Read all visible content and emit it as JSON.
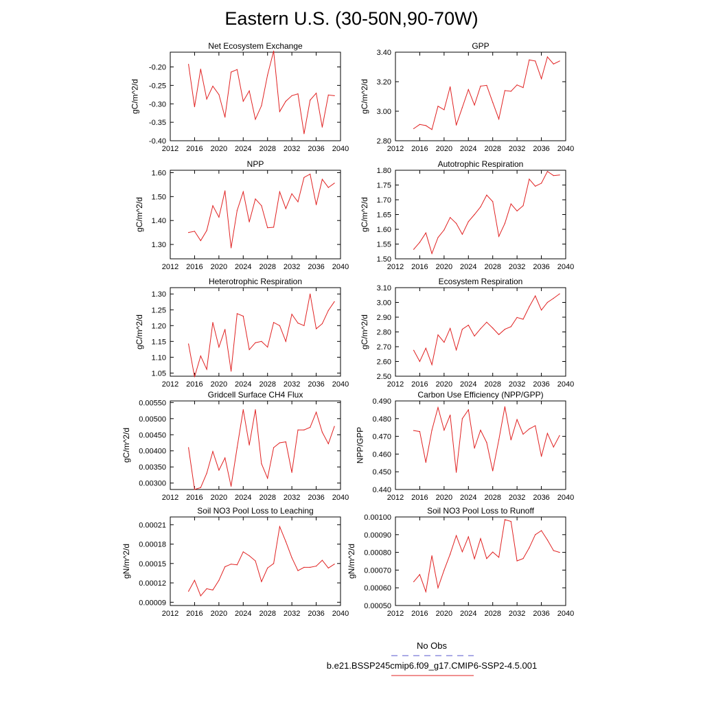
{
  "page_title": "Eastern U.S. (30-50N,90-70W)",
  "legend": {
    "entries": [
      {
        "label": "No Obs",
        "color": "#5555cc",
        "dash": "dashed"
      },
      {
        "label": "b.e21.BSSP245cmip6.f09_g17.CMIP6-SSP2-4.5.001",
        "color": "#e02020",
        "dash": "solid"
      }
    ]
  },
  "chart_data": [
    {
      "type": "line",
      "title": "Net Ecosystem Exchange",
      "ylabel": "gC/m^2/d",
      "xlabel": "",
      "xlim": [
        2012,
        2040
      ],
      "ylim": [
        -0.4,
        -0.16
      ],
      "xticks": [
        2012,
        2016,
        2020,
        2024,
        2028,
        2032,
        2036,
        2040
      ],
      "xtick_labels": [
        "2012",
        "2016",
        "2020",
        "2024",
        "2028",
        "2032",
        "2036",
        "2040"
      ],
      "yticks": [
        -0.4,
        -0.35,
        -0.3,
        -0.25,
        -0.2
      ],
      "ytick_labels": [
        "-0.40",
        "-0.35",
        "-0.30",
        "-0.25",
        "-0.20"
      ],
      "series": [
        {
          "color": "#e02020",
          "x": [
            2015,
            2016,
            2017,
            2018,
            2019,
            2020,
            2021,
            2022,
            2023,
            2024,
            2025,
            2026,
            2027,
            2028,
            2029,
            2030,
            2031,
            2032,
            2033,
            2034,
            2035,
            2036,
            2037,
            2038,
            2039
          ],
          "values": [
            -0.193,
            -0.308,
            -0.206,
            -0.287,
            -0.252,
            -0.275,
            -0.336,
            -0.214,
            -0.207,
            -0.293,
            -0.265,
            -0.342,
            -0.305,
            -0.222,
            -0.157,
            -0.321,
            -0.293,
            -0.278,
            -0.273,
            -0.381,
            -0.29,
            -0.271,
            -0.363,
            -0.276,
            -0.278
          ]
        }
      ]
    },
    {
      "type": "line",
      "title": "GPP",
      "ylabel": "gC/m^2/d",
      "xlabel": "",
      "xlim": [
        2012,
        2040
      ],
      "ylim": [
        2.8,
        3.4
      ],
      "xticks": [
        2012,
        2016,
        2020,
        2024,
        2028,
        2032,
        2036,
        2040
      ],
      "xtick_labels": [
        "2012",
        "2016",
        "2020",
        "2024",
        "2028",
        "2032",
        "2036",
        "2040"
      ],
      "yticks": [
        2.8,
        3.0,
        3.2,
        3.4
      ],
      "ytick_labels": [
        "2.80",
        "3.00",
        "3.20",
        "3.40"
      ],
      "series": [
        {
          "color": "#e02020",
          "x": [
            2015,
            2016,
            2017,
            2018,
            2019,
            2020,
            2021,
            2022,
            2023,
            2024,
            2025,
            2026,
            2027,
            2028,
            2029,
            2030,
            2031,
            2032,
            2033,
            2034,
            2035,
            2036,
            2037,
            2038,
            2039
          ],
          "values": [
            2.882,
            2.91,
            2.903,
            2.876,
            3.034,
            3.01,
            3.165,
            2.906,
            3.025,
            3.147,
            3.042,
            3.17,
            3.175,
            3.06,
            2.947,
            3.14,
            3.135,
            3.178,
            3.16,
            3.348,
            3.34,
            3.22,
            3.368,
            3.32,
            3.34
          ]
        }
      ]
    },
    {
      "type": "line",
      "title": "NPP",
      "ylabel": "gC/m^2/d",
      "xlabel": "",
      "xlim": [
        2012,
        2040
      ],
      "ylim": [
        1.24,
        1.61
      ],
      "xticks": [
        2012,
        2016,
        2020,
        2024,
        2028,
        2032,
        2036,
        2040
      ],
      "xtick_labels": [
        "2012",
        "2016",
        "2020",
        "2024",
        "2028",
        "2032",
        "2036",
        "2040"
      ],
      "yticks": [
        1.3,
        1.4,
        1.5,
        1.6
      ],
      "ytick_labels": [
        "1.30",
        "1.40",
        "1.50",
        "1.60"
      ],
      "series": [
        {
          "color": "#e02020",
          "x": [
            2015,
            2016,
            2017,
            2018,
            2019,
            2020,
            2021,
            2022,
            2023,
            2024,
            2025,
            2026,
            2027,
            2028,
            2029,
            2030,
            2031,
            2032,
            2033,
            2034,
            2035,
            2036,
            2037,
            2038,
            2039
          ],
          "values": [
            1.35,
            1.355,
            1.316,
            1.358,
            1.462,
            1.414,
            1.524,
            1.286,
            1.442,
            1.52,
            1.394,
            1.49,
            1.462,
            1.37,
            1.372,
            1.52,
            1.45,
            1.512,
            1.478,
            1.58,
            1.594,
            1.466,
            1.572,
            1.538,
            1.556
          ]
        }
      ]
    },
    {
      "type": "line",
      "title": "Autotrophic Respiration",
      "ylabel": "gC/m^2/d",
      "xlabel": "",
      "xlim": [
        2012,
        2040
      ],
      "ylim": [
        1.5,
        1.8
      ],
      "xticks": [
        2012,
        2016,
        2020,
        2024,
        2028,
        2032,
        2036,
        2040
      ],
      "xtick_labels": [
        "2012",
        "2016",
        "2020",
        "2024",
        "2028",
        "2032",
        "2036",
        "2040"
      ],
      "yticks": [
        1.5,
        1.55,
        1.6,
        1.65,
        1.7,
        1.75,
        1.8
      ],
      "ytick_labels": [
        "1.50",
        "1.55",
        "1.60",
        "1.65",
        "1.70",
        "1.75",
        "1.80"
      ],
      "series": [
        {
          "color": "#e02020",
          "x": [
            2015,
            2016,
            2017,
            2018,
            2019,
            2020,
            2021,
            2022,
            2023,
            2024,
            2025,
            2026,
            2027,
            2028,
            2029,
            2030,
            2031,
            2032,
            2033,
            2034,
            2035,
            2036,
            2037,
            2038,
            2039
          ],
          "values": [
            1.532,
            1.556,
            1.588,
            1.518,
            1.572,
            1.598,
            1.64,
            1.62,
            1.583,
            1.626,
            1.65,
            1.676,
            1.716,
            1.694,
            1.576,
            1.62,
            1.686,
            1.662,
            1.68,
            1.77,
            1.746,
            1.756,
            1.796,
            1.782,
            1.784
          ]
        }
      ]
    },
    {
      "type": "line",
      "title": "Heterotrophic Respiration",
      "ylabel": "gC/m^2/d",
      "xlabel": "",
      "xlim": [
        2012,
        2040
      ],
      "ylim": [
        1.04,
        1.32
      ],
      "xticks": [
        2012,
        2016,
        2020,
        2024,
        2028,
        2032,
        2036,
        2040
      ],
      "xtick_labels": [
        "2012",
        "2016",
        "2020",
        "2024",
        "2028",
        "2032",
        "2036",
        "2040"
      ],
      "yticks": [
        1.05,
        1.1,
        1.15,
        1.2,
        1.25,
        1.3
      ],
      "ytick_labels": [
        "1.05",
        "1.10",
        "1.15",
        "1.20",
        "1.25",
        "1.30"
      ],
      "series": [
        {
          "color": "#e02020",
          "x": [
            2015,
            2016,
            2017,
            2018,
            2019,
            2020,
            2021,
            2022,
            2023,
            2024,
            2025,
            2026,
            2027,
            2028,
            2029,
            2030,
            2031,
            2032,
            2033,
            2034,
            2035,
            2036,
            2037,
            2038,
            2039
          ],
          "values": [
            1.142,
            1.038,
            1.104,
            1.062,
            1.21,
            1.132,
            1.188,
            1.056,
            1.238,
            1.23,
            1.124,
            1.146,
            1.15,
            1.132,
            1.21,
            1.2,
            1.15,
            1.236,
            1.208,
            1.2,
            1.3,
            1.19,
            1.206,
            1.248,
            1.276
          ]
        }
      ]
    },
    {
      "type": "line",
      "title": "Ecosystem Respiration",
      "ylabel": "gC/m^2/d",
      "xlabel": "",
      "xlim": [
        2012,
        2040
      ],
      "ylim": [
        2.5,
        3.1
      ],
      "xticks": [
        2012,
        2016,
        2020,
        2024,
        2028,
        2032,
        2036,
        2040
      ],
      "xtick_labels": [
        "2012",
        "2016",
        "2020",
        "2024",
        "2028",
        "2032",
        "2036",
        "2040"
      ],
      "yticks": [
        2.5,
        2.6,
        2.7,
        2.8,
        2.9,
        3.0,
        3.1
      ],
      "ytick_labels": [
        "2.50",
        "2.60",
        "2.70",
        "2.80",
        "2.90",
        "3.00",
        "3.10"
      ],
      "series": [
        {
          "color": "#e02020",
          "x": [
            2015,
            2016,
            2017,
            2018,
            2019,
            2020,
            2021,
            2022,
            2023,
            2024,
            2025,
            2026,
            2027,
            2028,
            2029,
            2030,
            2031,
            2032,
            2033,
            2034,
            2035,
            2036,
            2037,
            2038,
            2039
          ],
          "values": [
            2.676,
            2.6,
            2.69,
            2.578,
            2.78,
            2.73,
            2.824,
            2.678,
            2.818,
            2.846,
            2.772,
            2.822,
            2.866,
            2.826,
            2.782,
            2.818,
            2.836,
            2.898,
            2.886,
            2.97,
            3.044,
            2.948,
            3.0,
            3.028,
            3.058
          ]
        }
      ]
    },
    {
      "type": "line",
      "title": "Gridcell Surface CH4 Flux",
      "ylabel": "gC/m^2/d",
      "xlabel": "",
      "xlim": [
        2012,
        2040
      ],
      "ylim": [
        0.0028,
        0.00555
      ],
      "xticks": [
        2012,
        2016,
        2020,
        2024,
        2028,
        2032,
        2036,
        2040
      ],
      "xtick_labels": [
        "2012",
        "2016",
        "2020",
        "2024",
        "2028",
        "2032",
        "2036",
        "2040"
      ],
      "yticks": [
        0.003,
        0.0035,
        0.004,
        0.0045,
        0.005,
        0.0055
      ],
      "ytick_labels": [
        "0.00300",
        "0.00350",
        "0.00400",
        "0.00450",
        "0.00500",
        "0.00550"
      ],
      "series": [
        {
          "color": "#e02020",
          "x": [
            2015,
            2016,
            2017,
            2018,
            2019,
            2020,
            2021,
            2022,
            2023,
            2024,
            2025,
            2026,
            2027,
            2028,
            2029,
            2030,
            2031,
            2032,
            2033,
            2034,
            2035,
            2036,
            2037,
            2038,
            2039
          ],
          "values": [
            0.0041,
            0.0028,
            0.00286,
            0.0033,
            0.00398,
            0.0034,
            0.00378,
            0.0029,
            0.0041,
            0.00528,
            0.00418,
            0.00528,
            0.0036,
            0.00315,
            0.0041,
            0.00425,
            0.00428,
            0.00333,
            0.00465,
            0.00465,
            0.00473,
            0.0052,
            0.00458,
            0.00422,
            0.00476
          ]
        }
      ]
    },
    {
      "type": "line",
      "title": "Carbon Use Efficiency (NPP/GPP)",
      "ylabel": "NPP/GPP",
      "xlabel": "",
      "xlim": [
        2012,
        2040
      ],
      "ylim": [
        0.44,
        0.49
      ],
      "xticks": [
        2012,
        2016,
        2020,
        2024,
        2028,
        2032,
        2036,
        2040
      ],
      "xtick_labels": [
        "2012",
        "2016",
        "2020",
        "2024",
        "2028",
        "2032",
        "2036",
        "2040"
      ],
      "yticks": [
        0.44,
        0.45,
        0.46,
        0.47,
        0.48,
        0.49
      ],
      "ytick_labels": [
        "0.440",
        "0.450",
        "0.460",
        "0.470",
        "0.480",
        "0.490"
      ],
      "series": [
        {
          "color": "#e02020",
          "x": [
            2015,
            2016,
            2017,
            2018,
            2019,
            2020,
            2021,
            2022,
            2023,
            2024,
            2025,
            2026,
            2027,
            2028,
            2029,
            2030,
            2031,
            2032,
            2033,
            2034,
            2035,
            2036,
            2037,
            2038,
            2039
          ],
          "values": [
            0.4733,
            0.4727,
            0.4553,
            0.4735,
            0.4863,
            0.4735,
            0.482,
            0.4497,
            0.48,
            0.485,
            0.4633,
            0.4735,
            0.4665,
            0.4505,
            0.468,
            0.4867,
            0.468,
            0.4795,
            0.4712,
            0.4742,
            0.476,
            0.4587,
            0.4717,
            0.464,
            0.4705
          ]
        }
      ]
    },
    {
      "type": "line",
      "title": "Soil NO3 Pool Loss to Leaching",
      "ylabel": "gN/m^2/d",
      "xlabel": "",
      "xlim": [
        2012,
        2040
      ],
      "ylim": [
        8.5e-05,
        0.000222
      ],
      "xticks": [
        2012,
        2016,
        2020,
        2024,
        2028,
        2032,
        2036,
        2040
      ],
      "xtick_labels": [
        "2012",
        "2016",
        "2020",
        "2024",
        "2028",
        "2032",
        "2036",
        "2040"
      ],
      "yticks": [
        9e-05,
        0.00012,
        0.00015,
        0.00018,
        0.00021
      ],
      "ytick_labels": [
        "0.00009",
        "0.00012",
        "0.00015",
        "0.00018",
        "0.00021"
      ],
      "series": [
        {
          "color": "#e02020",
          "x": [
            2015,
            2016,
            2017,
            2018,
            2019,
            2020,
            2021,
            2022,
            2023,
            2024,
            2025,
            2026,
            2027,
            2028,
            2029,
            2030,
            2031,
            2032,
            2033,
            2034,
            2035,
            2036,
            2037,
            2038,
            2039
          ],
          "values": [
            0.000107,
            0.000124,
            0.0001,
            0.000111,
            0.000109,
            0.000124,
            0.000145,
            0.000149,
            0.000148,
            0.000168,
            0.000162,
            0.000154,
            0.000122,
            0.000143,
            0.00015,
            0.000207,
            0.000184,
            0.000159,
            0.000139,
            0.000144,
            0.000144,
            0.000146,
            0.000155,
            0.000143,
            0.000149
          ]
        }
      ]
    },
    {
      "type": "line",
      "title": "Soil NO3 Pool Loss to Runoff",
      "ylabel": "gN/m^2/d",
      "xlabel": "",
      "xlim": [
        2012,
        2040
      ],
      "ylim": [
        0.0005,
        0.001
      ],
      "xticks": [
        2012,
        2016,
        2020,
        2024,
        2028,
        2032,
        2036,
        2040
      ],
      "xtick_labels": [
        "2012",
        "2016",
        "2020",
        "2024",
        "2028",
        "2032",
        "2036",
        "2040"
      ],
      "yticks": [
        0.0005,
        0.0006,
        0.0007,
        0.0008,
        0.0009,
        0.001
      ],
      "ytick_labels": [
        "0.00050",
        "0.00060",
        "0.00070",
        "0.00080",
        "0.00090",
        "0.00100"
      ],
      "series": [
        {
          "color": "#e02020",
          "x": [
            2015,
            2016,
            2017,
            2018,
            2019,
            2020,
            2021,
            2022,
            2023,
            2024,
            2025,
            2026,
            2027,
            2028,
            2029,
            2030,
            2031,
            2032,
            2033,
            2034,
            2035,
            2036,
            2037,
            2038,
            2039
          ],
          "values": [
            0.000634,
            0.000675,
            0.000578,
            0.000781,
            0.0006,
            0.0007,
            0.00079,
            0.000895,
            0.000803,
            0.000888,
            0.000764,
            0.000878,
            0.000765,
            0.000802,
            0.000772,
            0.000985,
            0.000975,
            0.000752,
            0.000765,
            0.000826,
            0.0009,
            0.000923,
            0.00087,
            0.00081,
            0.0008
          ]
        }
      ]
    }
  ]
}
